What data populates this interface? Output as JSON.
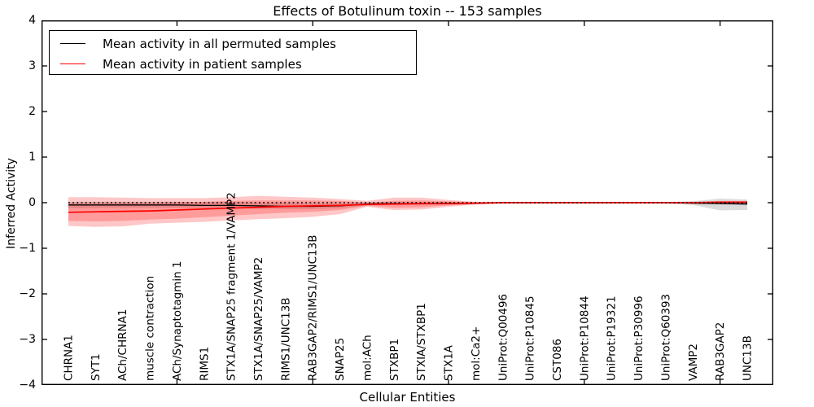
{
  "figure": {
    "title": "Effects of Botulinum toxin -- 153 samples",
    "xlabel": "Cellular Entities",
    "ylabel": "Inferred Activity"
  },
  "legend": {
    "items": [
      {
        "label": "Mean activity in all permuted samples",
        "color": "#000000"
      },
      {
        "label": "Mean activity in patient samples",
        "color": "#ff0000"
      }
    ]
  },
  "chart_data": {
    "type": "line",
    "title": "Effects of Botulinum toxin -- 153 samples",
    "xlabel": "Cellular Entities",
    "ylabel": "Inferred Activity",
    "ylim": [
      -4,
      4
    ],
    "yticks": [
      4,
      3,
      2,
      1,
      0,
      -1,
      -2,
      -3,
      -4
    ],
    "yticklabels": [
      "4",
      "3",
      "2",
      "1",
      "0",
      "−1",
      "−2",
      "−3",
      "−4"
    ],
    "xtick_positions": [
      4,
      9,
      14,
      19,
      24
    ],
    "xtick_rotation": 90,
    "grid": false,
    "legend_position": "upper left",
    "zero_reference_line": {
      "y": 0,
      "style": "dotted",
      "color": "#000000"
    },
    "categories": [
      "CHRNA1",
      "SYT1",
      "ACh/CHRNA1",
      "muscle contraction",
      "ACh/Synaptotagmin 1",
      "RIMS1",
      "STX1A/SNAP25 fragment 1/VAMP2",
      "STX1A/SNAP25/VAMP2",
      "RIMS1/UNC13B",
      "RAB3GAP2/RIMS1/UNC13B",
      "SNAP25",
      "mol:ACh",
      "STXBP1",
      "STXIA/STXBP1",
      "STX1A",
      "mol:Ca2+",
      "UniProt:Q00496",
      "UniProt:P10845",
      "CST086",
      "UniProt:P10844",
      "UniProt:P19321",
      "UniProt:P30996",
      "UniProt:Q60393",
      "VAMP2",
      "RAB3GAP2",
      "UNC13B"
    ],
    "series": [
      {
        "name": "Mean activity in all permuted samples",
        "color": "#000000",
        "band_color": "rgba(0,0,0,0.14)",
        "values": [
          -0.05,
          -0.05,
          -0.05,
          -0.05,
          -0.05,
          -0.06,
          -0.06,
          -0.07,
          -0.08,
          -0.08,
          -0.07,
          -0.03,
          -0.02,
          -0.02,
          -0.01,
          -0.01,
          0,
          0,
          0,
          0,
          0,
          0,
          0,
          -0.01,
          -0.02,
          -0.03
        ],
        "band_lo": [
          -0.12,
          -0.12,
          -0.11,
          -0.11,
          -0.11,
          -0.12,
          -0.12,
          -0.13,
          -0.14,
          -0.14,
          -0.12,
          -0.06,
          -0.05,
          -0.05,
          -0.03,
          -0.02,
          -0.01,
          -0.01,
          -0.01,
          -0.01,
          -0.01,
          -0.01,
          -0.02,
          -0.05,
          -0.17,
          -0.16
        ],
        "band_hi": [
          0.02,
          0.02,
          0.02,
          0.02,
          0.02,
          0.01,
          0.01,
          0,
          0,
          -0.01,
          -0.01,
          0.01,
          0.01,
          0.01,
          0.01,
          0,
          0.01,
          0.01,
          0.01,
          0.01,
          0.01,
          0.01,
          0.01,
          0.03,
          0.09,
          0.07
        ]
      },
      {
        "name": "Mean activity in patient samples",
        "color": "#ff0000",
        "band_color": "rgba(255,0,0,0.22)",
        "values": [
          -0.21,
          -0.2,
          -0.19,
          -0.18,
          -0.16,
          -0.14,
          -0.12,
          -0.1,
          -0.08,
          -0.07,
          -0.06,
          -0.04,
          -0.03,
          -0.02,
          -0.02,
          -0.01,
          0,
          0,
          0,
          0,
          0,
          0,
          0,
          0,
          0.01,
          0.01
        ],
        "inner_band_lo": [
          -0.4,
          -0.41,
          -0.4,
          -0.37,
          -0.35,
          -0.32,
          -0.28,
          -0.25,
          -0.22,
          -0.2,
          -0.16,
          -0.07,
          -0.11,
          -0.1,
          -0.06,
          -0.03,
          -0.01,
          -0.01,
          -0.01,
          -0.01,
          -0.01,
          -0.01,
          -0.01,
          -0.01,
          -0.02,
          -0.02
        ],
        "inner_band_hi": [
          -0.01,
          -0.01,
          0,
          0,
          0.01,
          0.02,
          0.04,
          0.05,
          0.05,
          0.05,
          0.04,
          0,
          0.04,
          0.05,
          0.03,
          0.01,
          0.01,
          0.01,
          0.01,
          0.01,
          0.01,
          0.01,
          0.01,
          0.01,
          0.02,
          0.02
        ],
        "outer_band_lo": [
          -0.51,
          -0.53,
          -0.52,
          -0.46,
          -0.44,
          -0.42,
          -0.39,
          -0.36,
          -0.34,
          -0.31,
          -0.25,
          -0.09,
          -0.16,
          -0.15,
          -0.09,
          -0.04,
          -0.02,
          -0.02,
          -0.02,
          -0.02,
          -0.02,
          -0.02,
          -0.02,
          -0.02,
          -0.03,
          -0.03
        ],
        "outer_band_hi": [
          0.12,
          0.12,
          0.11,
          0.1,
          0.1,
          0.1,
          0.12,
          0.15,
          0.13,
          0.11,
          0.08,
          0.04,
          0.11,
          0.11,
          0.06,
          0.02,
          0.02,
          0.02,
          0.02,
          0.02,
          0.02,
          0.02,
          0.02,
          0.02,
          0.04,
          0.04
        ]
      }
    ]
  }
}
